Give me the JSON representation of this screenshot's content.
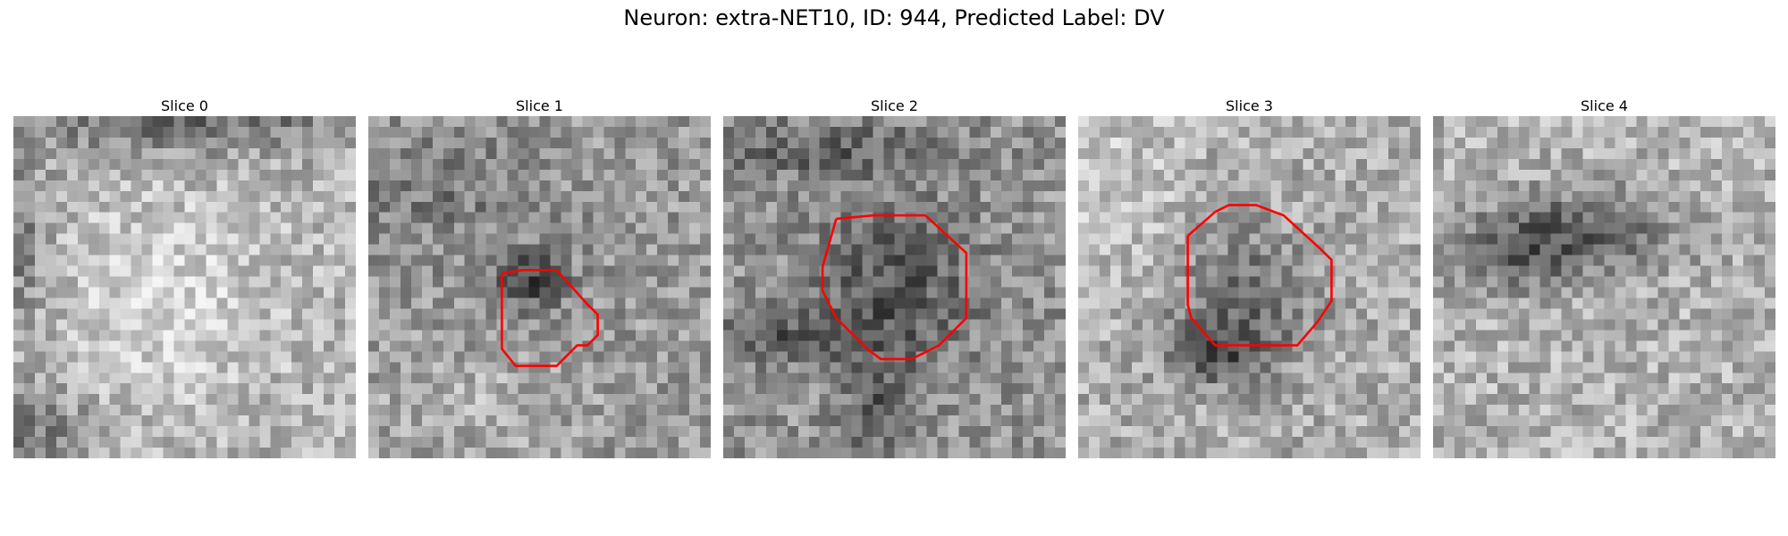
{
  "figure": {
    "title": "Neuron: extra-NET10, ID: 944, Predicted Label: DV"
  },
  "slices": [
    {
      "label": "Slice 0",
      "has_contour": false
    },
    {
      "label": "Slice 1",
      "has_contour": true
    },
    {
      "label": "Slice 2",
      "has_contour": true
    },
    {
      "label": "Slice 3",
      "has_contour": true
    },
    {
      "label": "Slice 4",
      "has_contour": false
    }
  ],
  "colors": {
    "contour": "#ff0000",
    "background": "#ffffff"
  }
}
